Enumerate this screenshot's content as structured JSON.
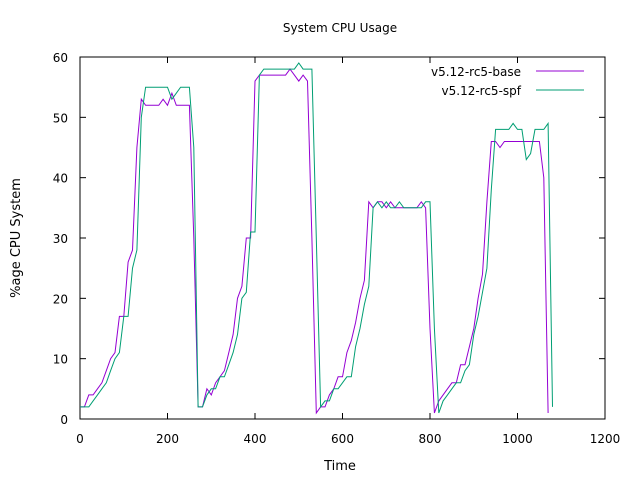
{
  "chart_data": {
    "type": "line",
    "title": "System CPU Usage",
    "xlabel": "Time",
    "ylabel": "%age CPU System",
    "xlim": [
      0,
      1200
    ],
    "ylim": [
      0,
      60
    ],
    "xticks": [
      0,
      200,
      400,
      600,
      800,
      1000,
      1200
    ],
    "yticks": [
      0,
      10,
      20,
      30,
      40,
      50,
      60
    ],
    "grid": false,
    "legend": "top-right",
    "series": [
      {
        "name": "v5.12-rc5-base",
        "color": "#9400d3",
        "points": [
          [
            0,
            2
          ],
          [
            10,
            2
          ],
          [
            20,
            4
          ],
          [
            30,
            4
          ],
          [
            40,
            5
          ],
          [
            50,
            6
          ],
          [
            60,
            8
          ],
          [
            70,
            10
          ],
          [
            80,
            11
          ],
          [
            90,
            17
          ],
          [
            100,
            17
          ],
          [
            110,
            26
          ],
          [
            120,
            28
          ],
          [
            130,
            45
          ],
          [
            140,
            53
          ],
          [
            150,
            52
          ],
          [
            160,
            52
          ],
          [
            170,
            52
          ],
          [
            180,
            52
          ],
          [
            190,
            53
          ],
          [
            200,
            52
          ],
          [
            210,
            54
          ],
          [
            220,
            52
          ],
          [
            230,
            52
          ],
          [
            240,
            52
          ],
          [
            250,
            52
          ],
          [
            260,
            30
          ],
          [
            270,
            2
          ],
          [
            280,
            2
          ],
          [
            290,
            5
          ],
          [
            300,
            4
          ],
          [
            310,
            6
          ],
          [
            320,
            7
          ],
          [
            330,
            8
          ],
          [
            340,
            11
          ],
          [
            350,
            14
          ],
          [
            360,
            20
          ],
          [
            370,
            22
          ],
          [
            380,
            30
          ],
          [
            390,
            30
          ],
          [
            400,
            56
          ],
          [
            410,
            57
          ],
          [
            420,
            57
          ],
          [
            430,
            57
          ],
          [
            440,
            57
          ],
          [
            450,
            57
          ],
          [
            460,
            57
          ],
          [
            470,
            57
          ],
          [
            480,
            58
          ],
          [
            490,
            57
          ],
          [
            500,
            56
          ],
          [
            510,
            57
          ],
          [
            520,
            56
          ],
          [
            530,
            30
          ],
          [
            540,
            1
          ],
          [
            550,
            2
          ],
          [
            560,
            2
          ],
          [
            570,
            4
          ],
          [
            580,
            5
          ],
          [
            590,
            7
          ],
          [
            600,
            7
          ],
          [
            610,
            11
          ],
          [
            620,
            13
          ],
          [
            630,
            16
          ],
          [
            640,
            20
          ],
          [
            650,
            23
          ],
          [
            660,
            36
          ],
          [
            670,
            35
          ],
          [
            680,
            36
          ],
          [
            690,
            36
          ],
          [
            700,
            35
          ],
          [
            710,
            36
          ],
          [
            720,
            35
          ],
          [
            730,
            35
          ],
          [
            740,
            35
          ],
          [
            750,
            35
          ],
          [
            760,
            35
          ],
          [
            770,
            35
          ],
          [
            780,
            36
          ],
          [
            790,
            35
          ],
          [
            800,
            15
          ],
          [
            810,
            1
          ],
          [
            820,
            3
          ],
          [
            830,
            4
          ],
          [
            840,
            5
          ],
          [
            850,
            6
          ],
          [
            860,
            6
          ],
          [
            870,
            9
          ],
          [
            880,
            9
          ],
          [
            890,
            12
          ],
          [
            900,
            15
          ],
          [
            910,
            20
          ],
          [
            920,
            24
          ],
          [
            930,
            36
          ],
          [
            940,
            46
          ],
          [
            950,
            46
          ],
          [
            960,
            45
          ],
          [
            970,
            46
          ],
          [
            980,
            46
          ],
          [
            990,
            46
          ],
          [
            1000,
            46
          ],
          [
            1010,
            46
          ],
          [
            1020,
            46
          ],
          [
            1030,
            46
          ],
          [
            1040,
            46
          ],
          [
            1050,
            46
          ],
          [
            1060,
            40
          ],
          [
            1070,
            1
          ]
        ]
      },
      {
        "name": "v5.12-rc5-spf",
        "color": "#009e73",
        "points": [
          [
            0,
            2
          ],
          [
            10,
            2
          ],
          [
            20,
            2
          ],
          [
            30,
            3
          ],
          [
            40,
            4
          ],
          [
            50,
            5
          ],
          [
            60,
            6
          ],
          [
            70,
            8
          ],
          [
            80,
            10
          ],
          [
            90,
            11
          ],
          [
            100,
            17
          ],
          [
            110,
            17
          ],
          [
            120,
            25
          ],
          [
            130,
            28
          ],
          [
            140,
            50
          ],
          [
            150,
            55
          ],
          [
            160,
            55
          ],
          [
            170,
            55
          ],
          [
            180,
            55
          ],
          [
            190,
            55
          ],
          [
            200,
            55
          ],
          [
            210,
            53
          ],
          [
            220,
            54
          ],
          [
            230,
            55
          ],
          [
            240,
            55
          ],
          [
            250,
            55
          ],
          [
            260,
            45
          ],
          [
            270,
            2
          ],
          [
            280,
            2
          ],
          [
            290,
            4
          ],
          [
            300,
            5
          ],
          [
            310,
            5
          ],
          [
            320,
            7
          ],
          [
            330,
            7
          ],
          [
            340,
            9
          ],
          [
            350,
            11
          ],
          [
            360,
            14
          ],
          [
            370,
            20
          ],
          [
            380,
            21
          ],
          [
            390,
            31
          ],
          [
            400,
            31
          ],
          [
            410,
            57
          ],
          [
            420,
            58
          ],
          [
            430,
            58
          ],
          [
            440,
            58
          ],
          [
            450,
            58
          ],
          [
            460,
            58
          ],
          [
            470,
            58
          ],
          [
            480,
            58
          ],
          [
            490,
            58
          ],
          [
            500,
            59
          ],
          [
            510,
            58
          ],
          [
            520,
            58
          ],
          [
            530,
            58
          ],
          [
            540,
            30
          ],
          [
            550,
            2
          ],
          [
            560,
            3
          ],
          [
            570,
            3
          ],
          [
            580,
            5
          ],
          [
            590,
            5
          ],
          [
            600,
            6
          ],
          [
            610,
            7
          ],
          [
            620,
            7
          ],
          [
            630,
            12
          ],
          [
            640,
            15
          ],
          [
            650,
            19
          ],
          [
            660,
            22
          ],
          [
            670,
            35
          ],
          [
            680,
            36
          ],
          [
            690,
            35
          ],
          [
            700,
            36
          ],
          [
            710,
            35
          ],
          [
            720,
            35
          ],
          [
            730,
            36
          ],
          [
            740,
            35
          ],
          [
            750,
            35
          ],
          [
            760,
            35
          ],
          [
            770,
            35
          ],
          [
            780,
            35
          ],
          [
            790,
            36
          ],
          [
            800,
            36
          ],
          [
            810,
            15
          ],
          [
            820,
            1
          ],
          [
            830,
            3
          ],
          [
            840,
            4
          ],
          [
            850,
            5
          ],
          [
            860,
            6
          ],
          [
            870,
            6
          ],
          [
            880,
            8
          ],
          [
            890,
            9
          ],
          [
            900,
            14
          ],
          [
            910,
            17
          ],
          [
            920,
            21
          ],
          [
            930,
            25
          ],
          [
            940,
            38
          ],
          [
            950,
            48
          ],
          [
            960,
            48
          ],
          [
            970,
            48
          ],
          [
            980,
            48
          ],
          [
            990,
            49
          ],
          [
            1000,
            48
          ],
          [
            1010,
            48
          ],
          [
            1020,
            43
          ],
          [
            1030,
            44
          ],
          [
            1040,
            48
          ],
          [
            1050,
            48
          ],
          [
            1060,
            48
          ],
          [
            1070,
            49
          ],
          [
            1080,
            2
          ]
        ]
      }
    ]
  }
}
